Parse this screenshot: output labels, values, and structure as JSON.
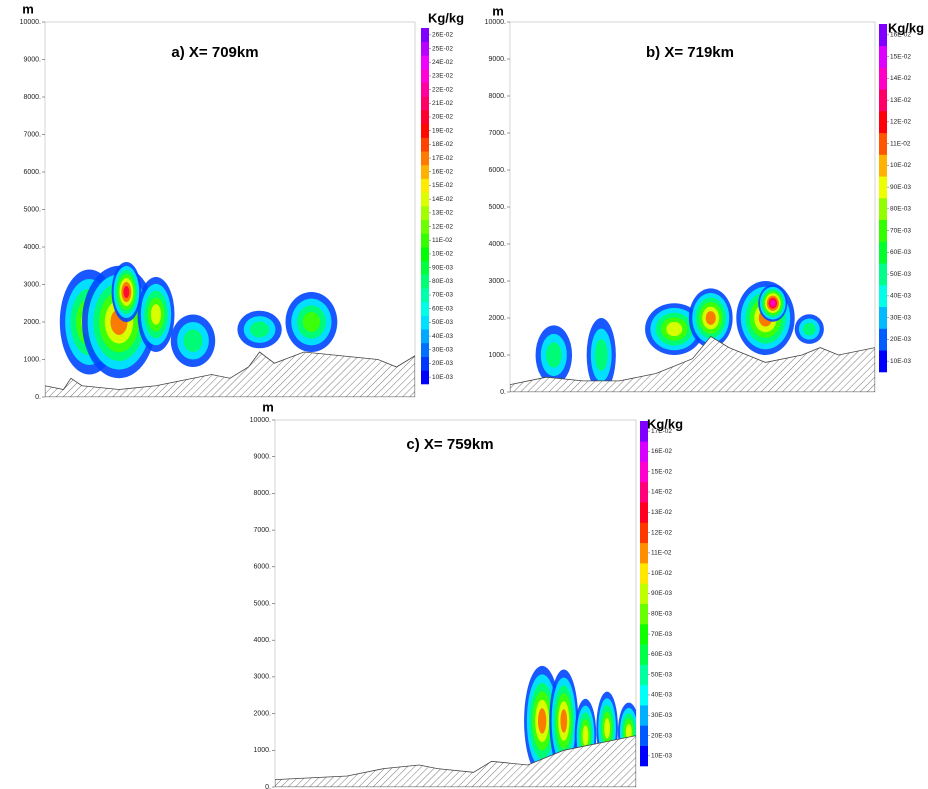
{
  "chart_data": [
    {
      "type": "contour",
      "title": "a) X= 709km",
      "y_label": "m",
      "colorbar_label": "Kg/kg",
      "ylim": [
        0,
        10000
      ],
      "yticks": [
        {
          "value": 0,
          "label": "0."
        },
        {
          "value": 1000,
          "label": "1000."
        },
        {
          "value": 2000,
          "label": "2000."
        },
        {
          "value": 3000,
          "label": "3000."
        },
        {
          "value": 4000,
          "label": "4000."
        },
        {
          "value": 5000,
          "label": "5000."
        },
        {
          "value": 6000,
          "label": "6000."
        },
        {
          "value": 7000,
          "label": "7000."
        },
        {
          "value": 8000,
          "label": "8000."
        },
        {
          "value": 9000,
          "label": "9000."
        },
        {
          "value": 10000,
          "label": "10000."
        }
      ],
      "levels": [
        {
          "value": 0.01,
          "label": "10E-03"
        },
        {
          "value": 0.02,
          "label": "20E-03"
        },
        {
          "value": 0.03,
          "label": "30E-03"
        },
        {
          "value": 0.04,
          "label": "40E-03"
        },
        {
          "value": 0.05,
          "label": "50E-03"
        },
        {
          "value": 0.06,
          "label": "60E-03"
        },
        {
          "value": 0.07,
          "label": "70E-03"
        },
        {
          "value": 0.08,
          "label": "80E-03"
        },
        {
          "value": 0.09,
          "label": "90E-03"
        },
        {
          "value": 0.1,
          "label": "10E-02"
        },
        {
          "value": 0.11,
          "label": "11E-02"
        },
        {
          "value": 0.12,
          "label": "12E-02"
        },
        {
          "value": 0.13,
          "label": "13E-02"
        },
        {
          "value": 0.14,
          "label": "14E-02"
        },
        {
          "value": 0.15,
          "label": "15E-02"
        },
        {
          "value": 0.16,
          "label": "16E-02"
        },
        {
          "value": 0.17,
          "label": "17E-02"
        },
        {
          "value": 0.18,
          "label": "18E-02"
        },
        {
          "value": 0.19,
          "label": "19E-02"
        },
        {
          "value": 0.2,
          "label": "20E-02"
        },
        {
          "value": 0.21,
          "label": "21E-02"
        },
        {
          "value": 0.22,
          "label": "22E-02"
        },
        {
          "value": 0.23,
          "label": "23E-02"
        },
        {
          "value": 0.24,
          "label": "24E-02"
        },
        {
          "value": 0.25,
          "label": "25E-02"
        },
        {
          "value": 0.26,
          "label": "26E-02"
        }
      ]
    },
    {
      "type": "contour",
      "title": "b) X= 719km",
      "y_label": "m",
      "colorbar_label": "Kg/kg",
      "ylim": [
        0,
        10000
      ],
      "yticks": [
        {
          "value": 0,
          "label": "0."
        },
        {
          "value": 1000,
          "label": "1000."
        },
        {
          "value": 2000,
          "label": "2000."
        },
        {
          "value": 3000,
          "label": "3000."
        },
        {
          "value": 4000,
          "label": "4000."
        },
        {
          "value": 5000,
          "label": "5000."
        },
        {
          "value": 6000,
          "label": "6000."
        },
        {
          "value": 7000,
          "label": "7000."
        },
        {
          "value": 8000,
          "label": "8000."
        },
        {
          "value": 9000,
          "label": "9000."
        },
        {
          "value": 10000,
          "label": "10000."
        }
      ],
      "levels": [
        {
          "value": 0.01,
          "label": "10E-03"
        },
        {
          "value": 0.02,
          "label": "20E-03"
        },
        {
          "value": 0.03,
          "label": "30E-03"
        },
        {
          "value": 0.04,
          "label": "40E-03"
        },
        {
          "value": 0.05,
          "label": "50E-03"
        },
        {
          "value": 0.06,
          "label": "60E-03"
        },
        {
          "value": 0.07,
          "label": "70E-03"
        },
        {
          "value": 0.08,
          "label": "80E-03"
        },
        {
          "value": 0.09,
          "label": "90E-03"
        },
        {
          "value": 0.1,
          "label": "10E-02"
        },
        {
          "value": 0.11,
          "label": "11E-02"
        },
        {
          "value": 0.12,
          "label": "12E-02"
        },
        {
          "value": 0.13,
          "label": "13E-02"
        },
        {
          "value": 0.14,
          "label": "14E-02"
        },
        {
          "value": 0.15,
          "label": "15E-02"
        },
        {
          "value": 0.16,
          "label": "16E-02"
        }
      ]
    },
    {
      "type": "contour",
      "title": "c) X= 759km",
      "y_label": "m",
      "colorbar_label": "Kg/kg",
      "ylim": [
        0,
        10000
      ],
      "yticks": [
        {
          "value": 0,
          "label": "0."
        },
        {
          "value": 1000,
          "label": "1000."
        },
        {
          "value": 2000,
          "label": "2000."
        },
        {
          "value": 3000,
          "label": "3000."
        },
        {
          "value": 4000,
          "label": "4000."
        },
        {
          "value": 5000,
          "label": "5000."
        },
        {
          "value": 6000,
          "label": "6000."
        },
        {
          "value": 7000,
          "label": "7000."
        },
        {
          "value": 8000,
          "label": "8000."
        },
        {
          "value": 9000,
          "label": "9000."
        },
        {
          "value": 10000,
          "label": "10000."
        }
      ],
      "levels": [
        {
          "value": 0.01,
          "label": "10E-03"
        },
        {
          "value": 0.02,
          "label": "20E-03"
        },
        {
          "value": 0.03,
          "label": "30E-03"
        },
        {
          "value": 0.04,
          "label": "40E-03"
        },
        {
          "value": 0.05,
          "label": "50E-03"
        },
        {
          "value": 0.06,
          "label": "60E-03"
        },
        {
          "value": 0.07,
          "label": "70E-03"
        },
        {
          "value": 0.08,
          "label": "80E-03"
        },
        {
          "value": 0.09,
          "label": "90E-03"
        },
        {
          "value": 0.1,
          "label": "10E-02"
        },
        {
          "value": 0.11,
          "label": "11E-02"
        },
        {
          "value": 0.12,
          "label": "12E-02"
        },
        {
          "value": 0.13,
          "label": "13E-02"
        },
        {
          "value": 0.14,
          "label": "14E-02"
        },
        {
          "value": 0.15,
          "label": "15E-02"
        },
        {
          "value": 0.16,
          "label": "16E-02"
        },
        {
          "value": 0.17,
          "label": "17E-02"
        }
      ]
    }
  ]
}
